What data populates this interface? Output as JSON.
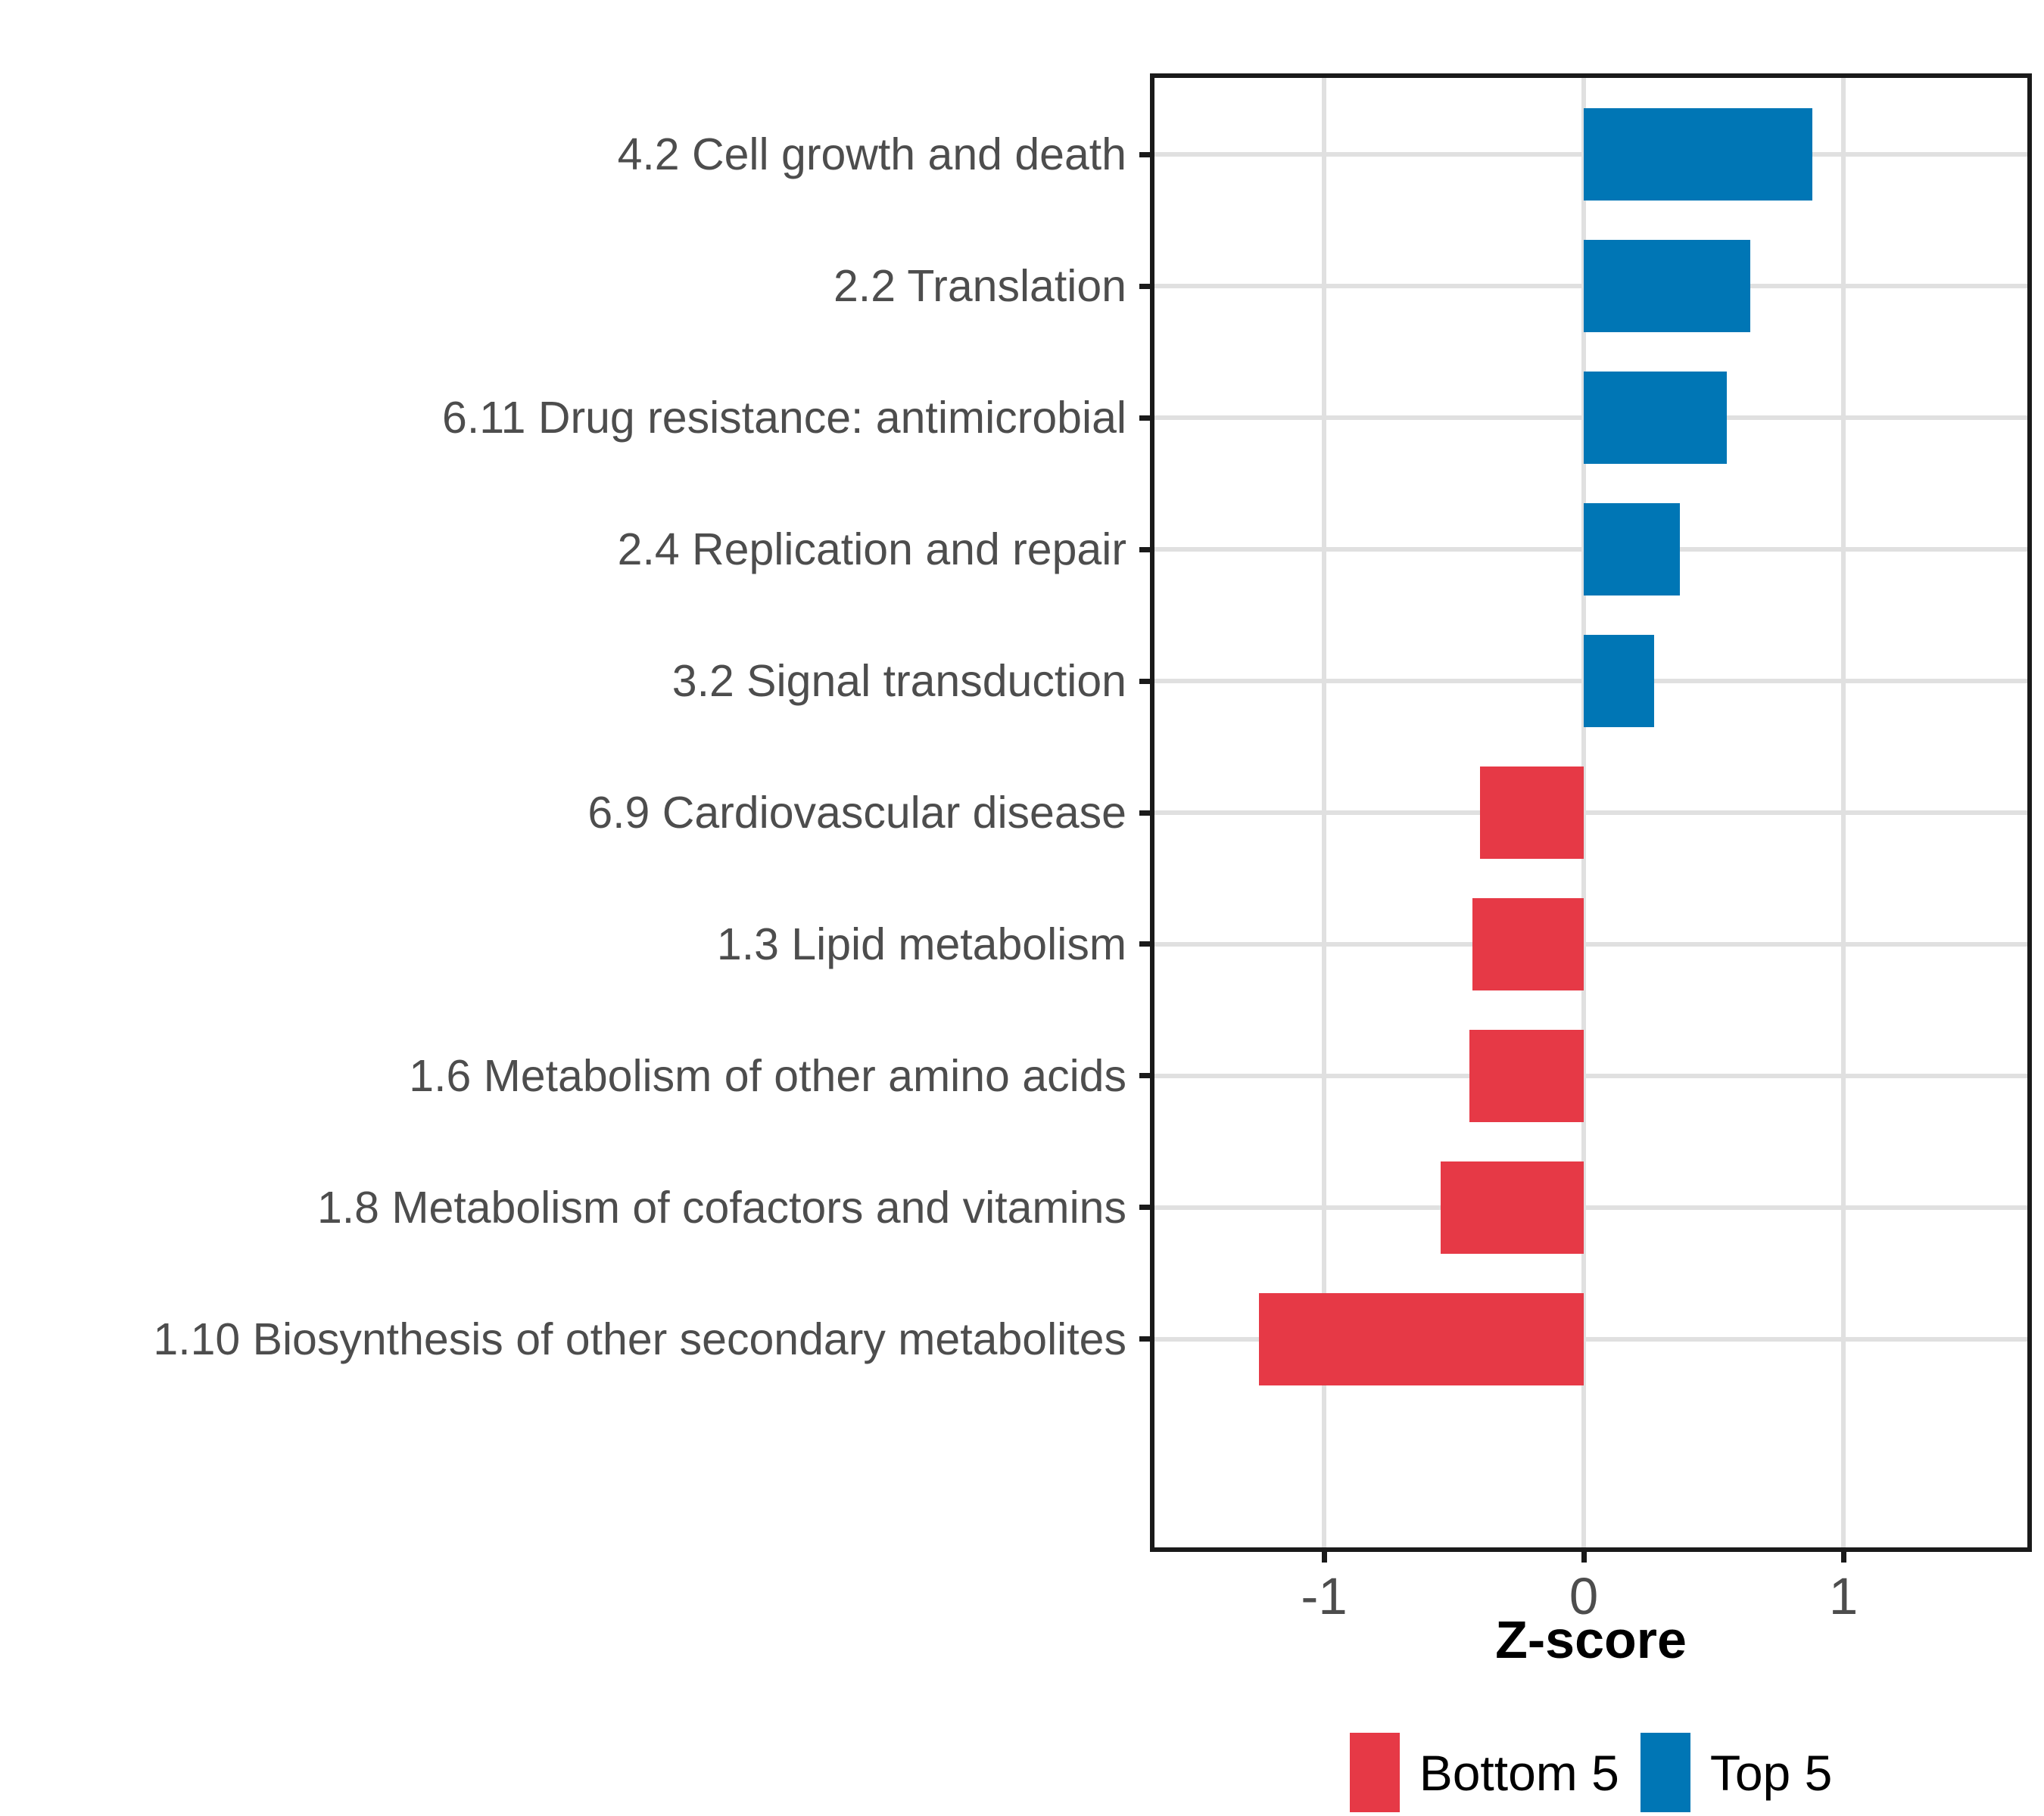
{
  "chart_data": {
    "type": "bar",
    "orientation": "horizontal",
    "title": "",
    "xlabel": "Z-score",
    "ylabel": "",
    "categories": [
      "4.2 Cell growth and death",
      "2.2 Translation",
      "6.11 Drug resistance: antimicrobial",
      "2.4 Replication and repair",
      "3.2 Signal transduction",
      "6.9 Cardiovascular disease",
      "1.3 Lipid metabolism",
      "1.6 Metabolism of other amino acids",
      "1.8 Metabolism of cofactors and vitamins",
      "1.10 Biosynthesis of other secondary metabolites"
    ],
    "values": [
      0.88,
      0.64,
      0.55,
      0.37,
      0.27,
      -0.4,
      -0.43,
      -0.44,
      -0.55,
      -1.25
    ],
    "groups": [
      "Top 5",
      "Top 5",
      "Top 5",
      "Top 5",
      "Top 5",
      "Bottom 5",
      "Bottom 5",
      "Bottom 5",
      "Bottom 5",
      "Bottom 5"
    ],
    "legend": [
      {
        "label": "Bottom 5",
        "color": "#E63946"
      },
      {
        "label": "Top 5",
        "color": "#0076B5"
      }
    ],
    "legend_position": "bottom",
    "x_ticks": [
      {
        "value": -1,
        "label": "-1"
      },
      {
        "value": 0,
        "label": "0"
      },
      {
        "value": 1,
        "label": "1"
      }
    ],
    "xlim": [
      -1.662,
      1.717
    ],
    "bar_width_fraction": 0.7,
    "grid": true,
    "colors": {
      "top5": "#0076B5",
      "bottom5": "#E63946",
      "gridline": "#E0E0E0",
      "axis_text": "#4D4D4D",
      "panel_border": "#1A1A1A",
      "background": "#FFFFFF"
    }
  }
}
